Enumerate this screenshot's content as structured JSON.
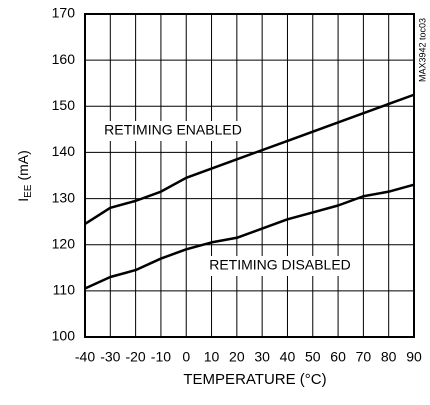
{
  "chart_data": {
    "type": "line",
    "ylabel": {
      "main": "I",
      "sub": "EE",
      "unit": "(mA)"
    },
    "xlabel": "TEMPERATURE (°C)",
    "watermark": "MAX3942 toc03",
    "x": [
      -40,
      -30,
      -20,
      -10,
      0,
      10,
      20,
      30,
      40,
      50,
      60,
      70,
      80,
      90
    ],
    "series": [
      {
        "name": "RETIMING ENABLED",
        "color": "#000000",
        "values": [
          124.5,
          128,
          129.5,
          131.5,
          134.5,
          136.5,
          138.5,
          140.5,
          142.5,
          144.5,
          146.5,
          148.5,
          150.5,
          152.5
        ]
      },
      {
        "name": "RETIMING DISABLED",
        "color": "#000000",
        "values": [
          110.5,
          113,
          114.5,
          117,
          119,
          120.5,
          121.5,
          123.5,
          125.5,
          127,
          128.5,
          130.5,
          131.5,
          133
        ]
      }
    ],
    "xlim": [
      -40,
      90
    ],
    "xticks": [
      -40,
      -30,
      -20,
      -10,
      0,
      10,
      20,
      30,
      40,
      50,
      60,
      70,
      80,
      90
    ],
    "ylim": [
      100,
      170
    ],
    "yticks": [
      100,
      110,
      120,
      130,
      140,
      150,
      160,
      170
    ],
    "grid": true
  }
}
